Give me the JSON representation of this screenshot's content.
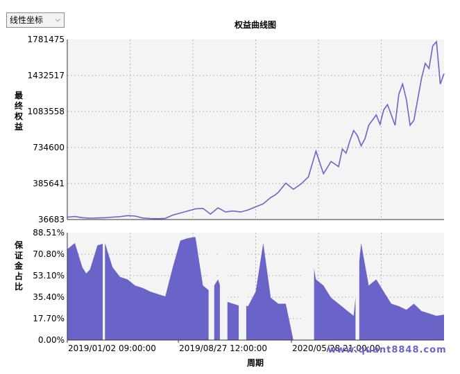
{
  "scale_select": {
    "value": "线性坐标",
    "arrow_icon": "chevron-down-icon"
  },
  "watermark": "www.quant8848.com",
  "chart_data": [
    {
      "type": "line",
      "title": "权益曲线图",
      "ylabel": "最终权益",
      "xlabel": "",
      "ylim": [
        36683,
        1781475
      ],
      "yticks": [
        "36683",
        "385641",
        "734600",
        "1083558",
        "1432517",
        "1781475"
      ],
      "grid": true,
      "color": "#6b64c8",
      "series": [
        {
          "x": [
            0,
            0.02,
            0.04,
            0.06,
            0.08,
            0.1,
            0.12,
            0.14,
            0.16,
            0.18,
            0.2,
            0.22,
            0.24,
            0.26,
            0.28,
            0.3,
            0.32,
            0.34,
            0.36,
            0.38,
            0.4,
            0.42,
            0.44,
            0.46,
            0.48,
            0.5,
            0.52,
            0.54,
            0.55,
            0.56,
            0.58,
            0.6,
            0.62,
            0.64,
            0.66,
            0.68,
            0.7,
            0.72,
            0.73,
            0.74,
            0.75,
            0.76,
            0.77,
            0.78,
            0.79,
            0.8,
            0.81,
            0.82,
            0.83,
            0.84,
            0.85,
            0.86,
            0.87,
            0.88,
            0.89,
            0.9,
            0.91,
            0.92,
            0.93,
            0.94,
            0.95,
            0.96,
            0.97,
            0.98,
            0.99,
            1.0
          ],
          "values": [
            60000,
            66000,
            55000,
            50000,
            52000,
            55000,
            60000,
            65000,
            75000,
            70000,
            52000,
            47000,
            45000,
            48000,
            80000,
            100000,
            120000,
            140000,
            145000,
            90000,
            150000,
            110000,
            120000,
            110000,
            130000,
            160000,
            190000,
            250000,
            270000,
            300000,
            390000,
            330000,
            380000,
            450000,
            700000,
            480000,
            600000,
            550000,
            720000,
            680000,
            800000,
            900000,
            850000,
            750000,
            820000,
            950000,
            1000000,
            1050000,
            960000,
            1100000,
            1150000,
            1050000,
            950000,
            1250000,
            1350000,
            1200000,
            950000,
            1000000,
            1200000,
            1400000,
            1550000,
            1500000,
            1720000,
            1760000,
            1350000,
            1450000
          ]
        }
      ]
    },
    {
      "type": "area",
      "ylabel": "保证金占比",
      "xlabel": "周期",
      "ylim": [
        0,
        88.51
      ],
      "yticks": [
        "0.00%",
        "17.70%",
        "35.40%",
        "53.10%",
        "70.80%",
        "88.51%"
      ],
      "xticks": [
        "2019/01/02 09:00:00",
        "2019/08/27 12:00:00",
        "2020/05/28 21:00:00"
      ],
      "grid": true,
      "color": "#6b64c8",
      "series": [
        {
          "x": [
            0,
            0.02,
            0.04,
            0.05,
            0.06,
            0.08,
            0.1,
            0.12,
            0.14,
            0.16,
            0.18,
            0.2,
            0.22,
            0.24,
            0.26,
            0.28,
            0.3,
            0.32,
            0.34,
            0.36,
            0.38,
            0.4,
            0.42,
            0.44,
            0.46,
            0.48,
            0.5,
            0.52,
            0.54,
            0.56,
            0.58,
            0.6,
            0.62,
            0.64,
            0.66,
            0.68,
            0.7,
            0.72,
            0.74,
            0.76,
            0.78,
            0.8,
            0.82,
            0.84,
            0.86,
            0.88,
            0.9,
            0.92,
            0.94,
            0.96,
            0.98,
            1.0
          ],
          "values": [
            75,
            80,
            60,
            55,
            58,
            78,
            80,
            60,
            52,
            50,
            45,
            43,
            40,
            38,
            36,
            60,
            82,
            84,
            85,
            45,
            40,
            50,
            32,
            30,
            28,
            28,
            40,
            80,
            35,
            30,
            30,
            0,
            0,
            85,
            50,
            45,
            35,
            30,
            25,
            20,
            80,
            45,
            50,
            40,
            30,
            28,
            25,
            30,
            24,
            22,
            20,
            21
          ],
          "gaps": [
            [
              0.094,
              0.1
            ],
            [
              0.375,
              0.39
            ],
            [
              0.405,
              0.425
            ],
            [
              0.455,
              0.475
            ],
            [
              0.62,
              0.655
            ],
            [
              0.765,
              0.775
            ]
          ]
        }
      ]
    }
  ]
}
